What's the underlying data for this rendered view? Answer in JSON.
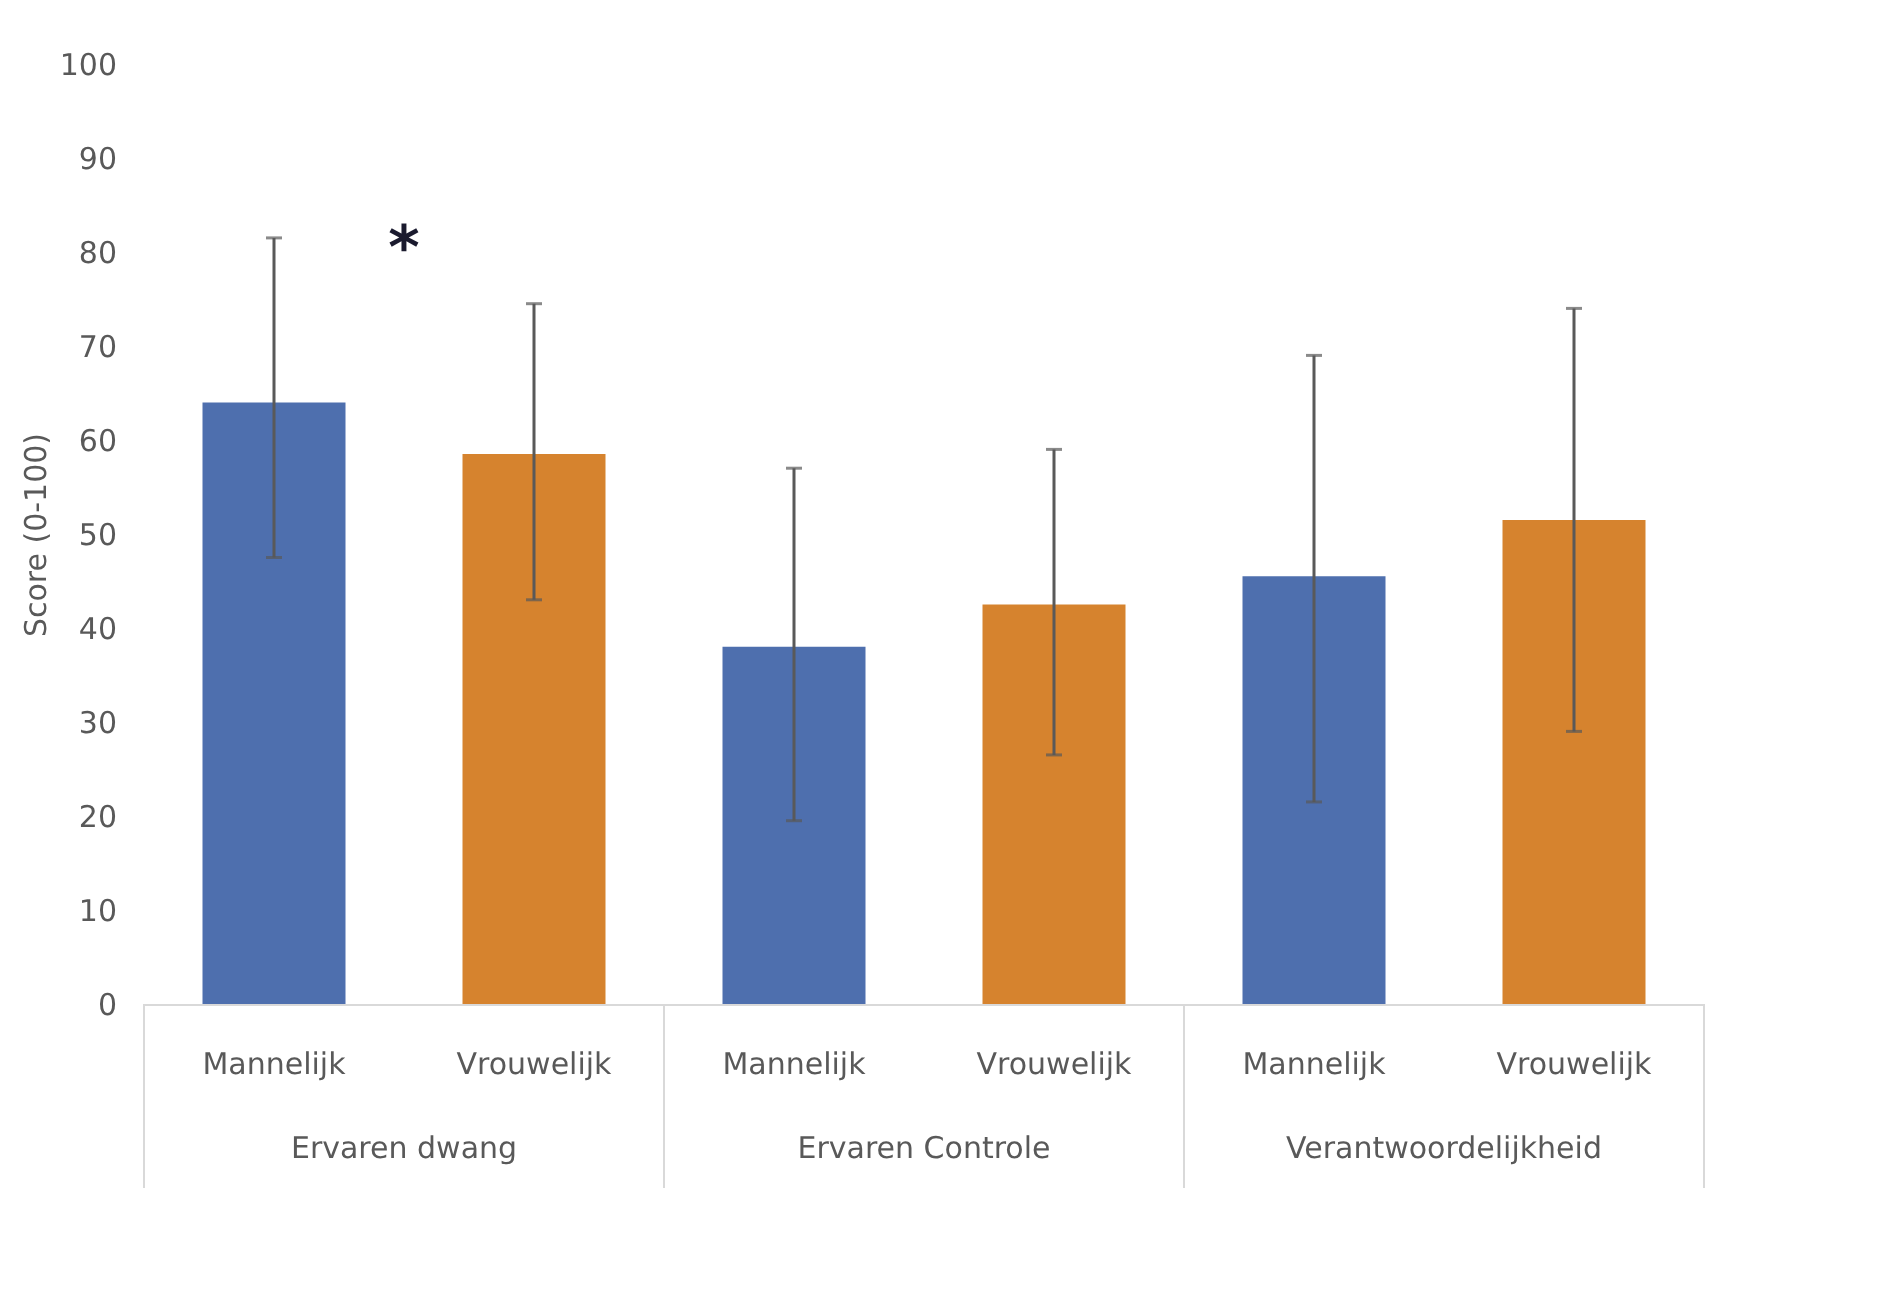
{
  "chart_data": {
    "type": "bar",
    "ylabel": "Score (0-100)",
    "categories": [
      "Ervaren dwang",
      "Ervaren Controle",
      "Verantwoordelijkheid"
    ],
    "series": [
      {
        "name": "Mannelijk",
        "color": "#4e6fae",
        "values": [
          64,
          38,
          45.5
        ],
        "errors": [
          [
            47.5,
            81.5
          ],
          [
            19.5,
            57
          ],
          [
            21.5,
            69
          ]
        ]
      },
      {
        "name": "Vrouwelijk",
        "color": "#d6832e",
        "values": [
          58.5,
          42.5,
          51.5
        ],
        "errors": [
          [
            43,
            74.5
          ],
          [
            26.5,
            59
          ],
          [
            29,
            74
          ]
        ]
      }
    ],
    "ylim": [
      0,
      100
    ],
    "yticks": [
      0,
      10,
      20,
      30,
      40,
      50,
      60,
      70,
      80,
      90,
      100
    ],
    "annotations": [
      "*"
    ],
    "grid": false,
    "legend": false
  }
}
